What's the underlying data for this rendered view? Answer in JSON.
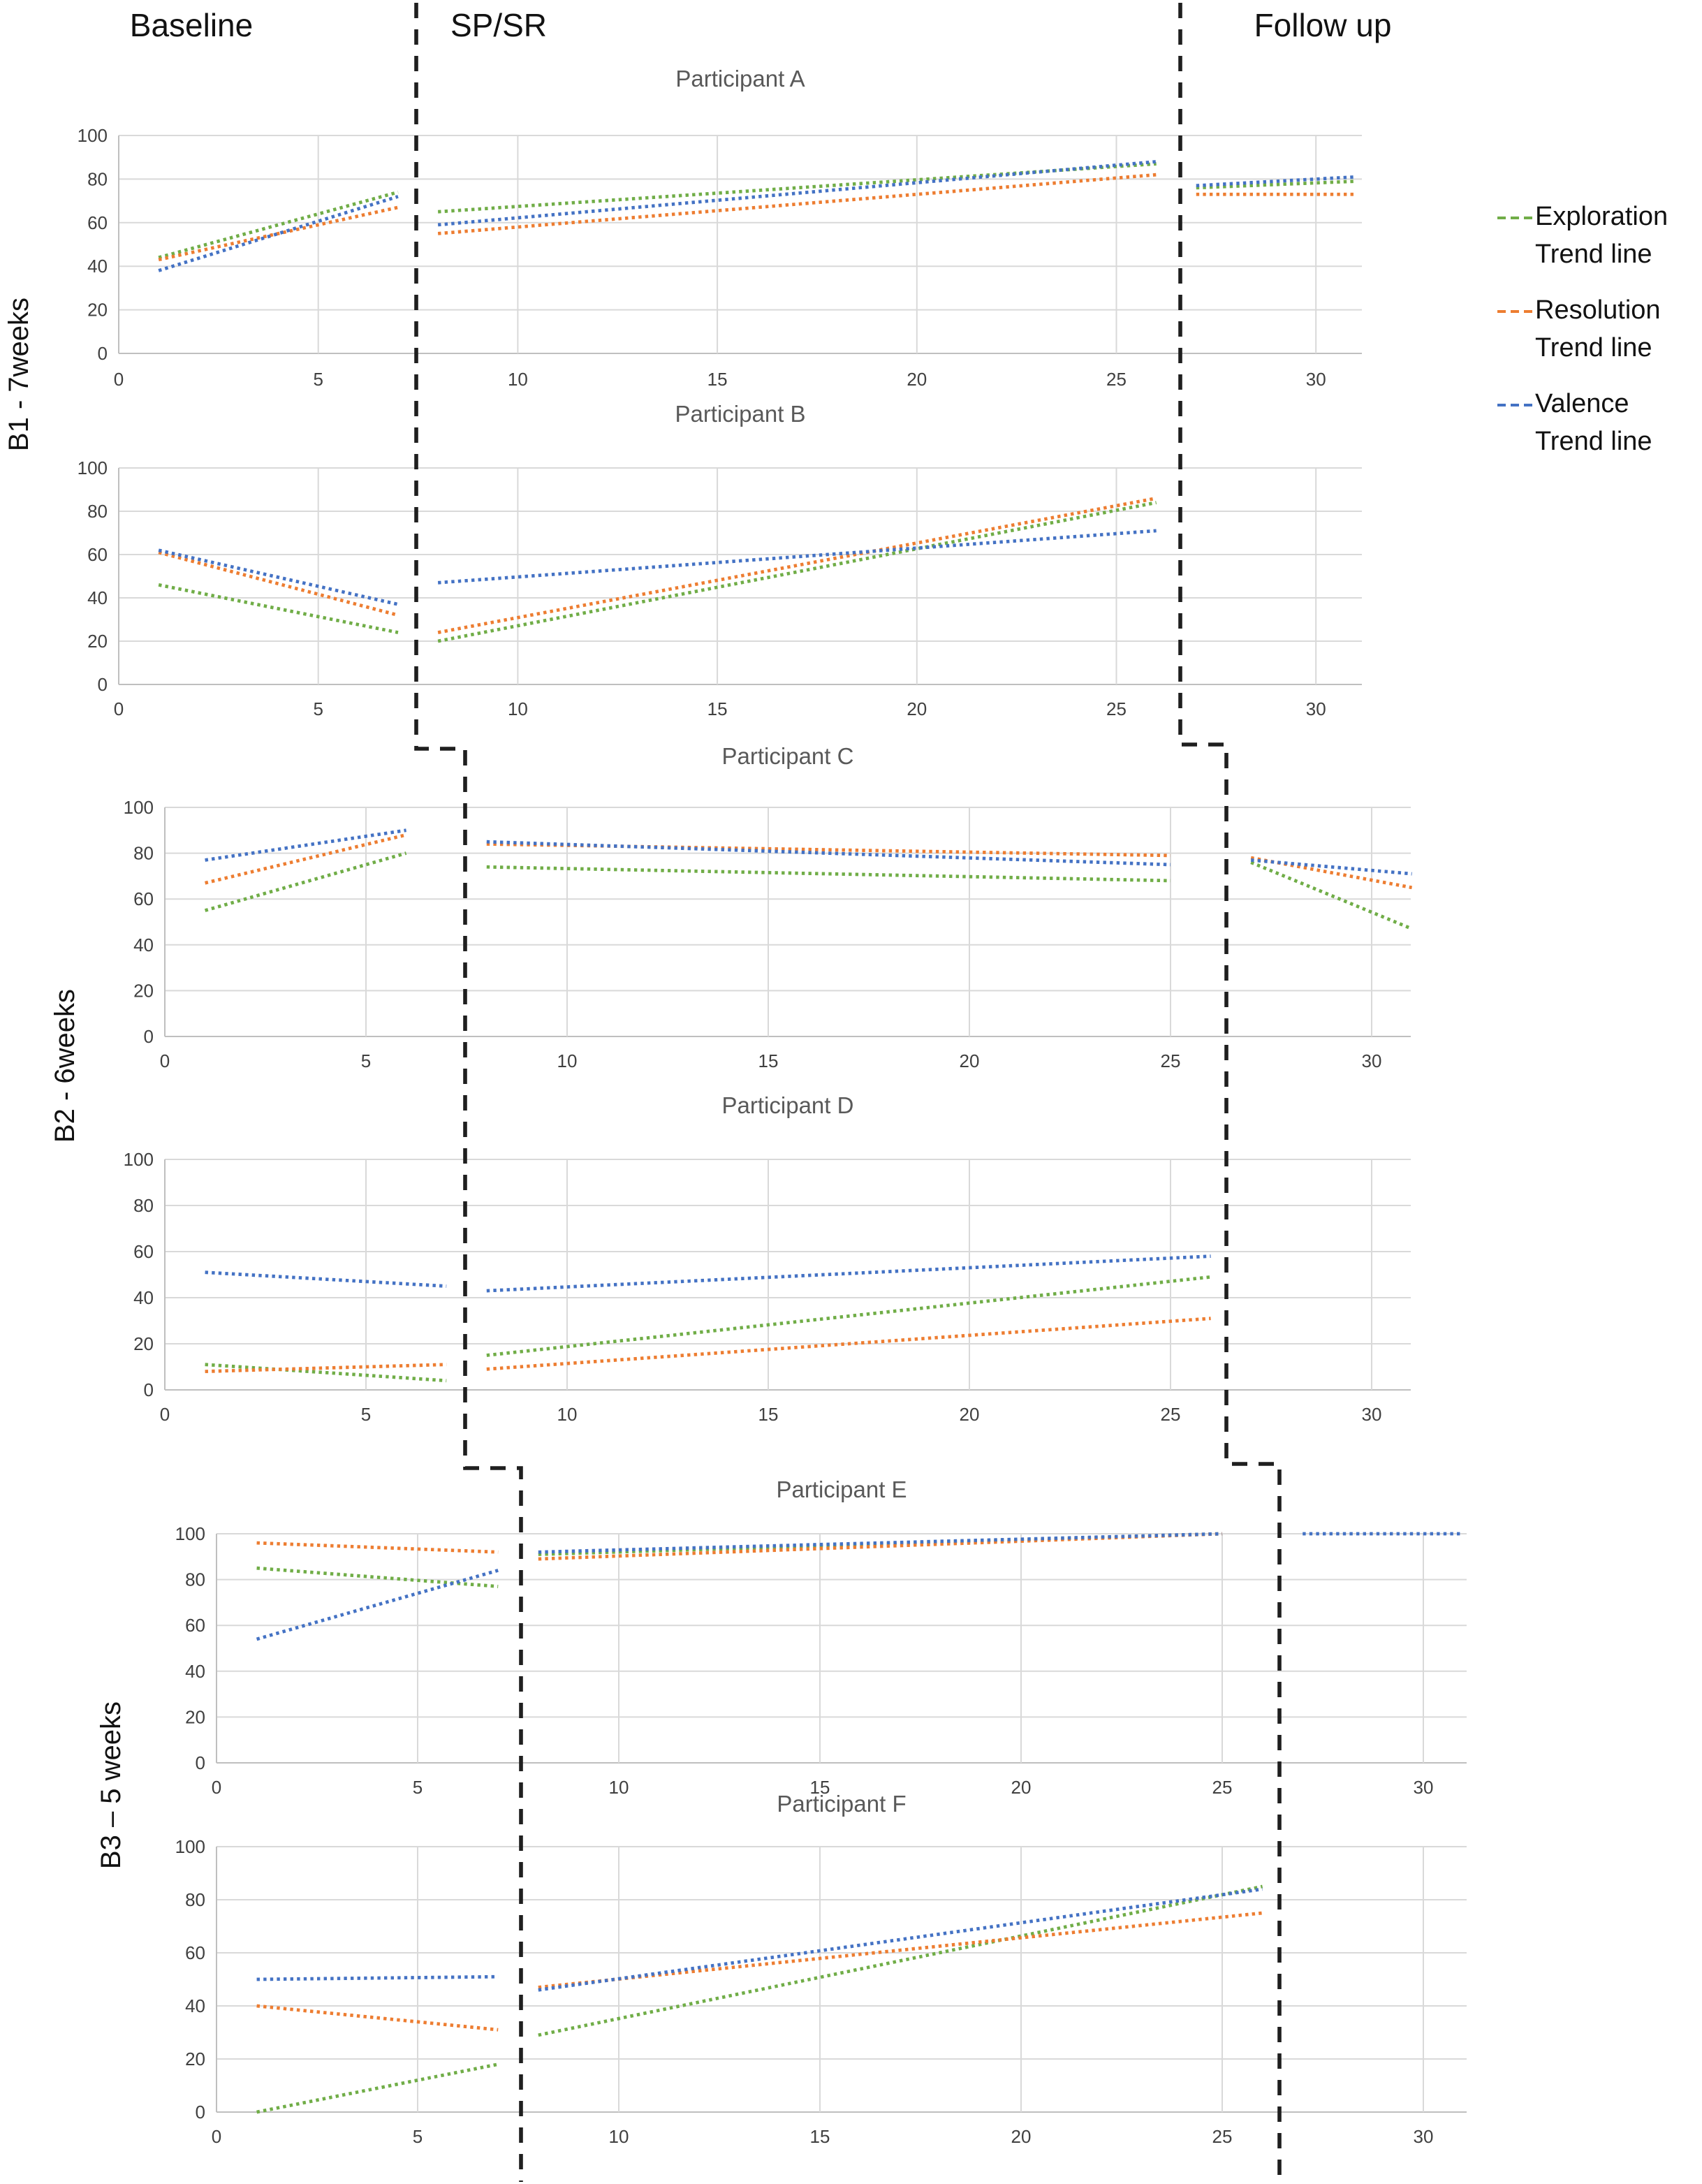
{
  "header": {
    "baseline": "Baseline",
    "spsr": "SP/SR",
    "followup": "Follow up"
  },
  "row_labels": [
    "B1 - 7weeks",
    "B2 - 6weeks",
    "B3 – 5 weeks"
  ],
  "legend": [
    {
      "name": "Exploration",
      "sub": "Trend line",
      "color": "#70AD47"
    },
    {
      "name": "Resolution",
      "sub": "Trend line",
      "color": "#ED7D31"
    },
    {
      "name": "Valence",
      "sub": "Trend line",
      "color": "#4472C4"
    }
  ],
  "chart_data": [
    {
      "type": "line",
      "title": "Participant A",
      "xlabel": "",
      "ylabel": "",
      "xlim": [
        0,
        31.2
      ],
      "ylim": [
        0,
        100
      ],
      "xticks": [
        0,
        5,
        10,
        15,
        20,
        25,
        30
      ],
      "yticks": [
        0,
        20,
        40,
        60,
        80,
        100
      ],
      "grid": true,
      "series": [
        {
          "name": "Exploration Trend line",
          "color": "#70AD47",
          "segments": [
            {
              "phase": "baseline",
              "x": [
                1,
                7
              ],
              "y": [
                44,
                74
              ]
            },
            {
              "phase": "spsr",
              "x": [
                8,
                26
              ],
              "y": [
                65,
                87
              ]
            },
            {
              "phase": "followup",
              "x": [
                27,
                31
              ],
              "y": [
                76,
                79
              ]
            }
          ]
        },
        {
          "name": "Resolution Trend line",
          "color": "#ED7D31",
          "segments": [
            {
              "phase": "baseline",
              "x": [
                1,
                7
              ],
              "y": [
                43,
                67
              ]
            },
            {
              "phase": "spsr",
              "x": [
                8,
                26
              ],
              "y": [
                55,
                82
              ]
            },
            {
              "phase": "followup",
              "x": [
                27,
                31
              ],
              "y": [
                73,
                73
              ]
            }
          ]
        },
        {
          "name": "Valence Trend line",
          "color": "#4472C4",
          "segments": [
            {
              "phase": "baseline",
              "x": [
                1,
                7
              ],
              "y": [
                38,
                72
              ]
            },
            {
              "phase": "spsr",
              "x": [
                8,
                26
              ],
              "y": [
                59,
                88
              ]
            },
            {
              "phase": "followup",
              "x": [
                27,
                31
              ],
              "y": [
                77,
                81
              ]
            }
          ]
        }
      ]
    },
    {
      "type": "line",
      "title": "Participant B",
      "xlabel": "",
      "ylabel": "",
      "xlim": [
        0,
        31.2
      ],
      "ylim": [
        0,
        100
      ],
      "xticks": [
        0,
        5,
        10,
        15,
        20,
        25,
        30
      ],
      "yticks": [
        0,
        20,
        40,
        60,
        80,
        100
      ],
      "grid": true,
      "series": [
        {
          "name": "Exploration Trend line",
          "color": "#70AD47",
          "segments": [
            {
              "phase": "baseline",
              "x": [
                1,
                7
              ],
              "y": [
                46,
                24
              ]
            },
            {
              "phase": "spsr",
              "x": [
                8,
                26
              ],
              "y": [
                20,
                84
              ]
            }
          ]
        },
        {
          "name": "Resolution Trend line",
          "color": "#ED7D31",
          "segments": [
            {
              "phase": "baseline",
              "x": [
                1,
                7
              ],
              "y": [
                61,
                32
              ]
            },
            {
              "phase": "spsr",
              "x": [
                8,
                26
              ],
              "y": [
                24,
                86
              ]
            }
          ]
        },
        {
          "name": "Valence Trend line",
          "color": "#4472C4",
          "segments": [
            {
              "phase": "baseline",
              "x": [
                1,
                7
              ],
              "y": [
                62,
                37
              ]
            },
            {
              "phase": "spsr",
              "x": [
                8,
                26
              ],
              "y": [
                47,
                71
              ]
            }
          ]
        }
      ]
    },
    {
      "type": "line",
      "title": "Participant C",
      "xlabel": "",
      "ylabel": "",
      "xlim": [
        0,
        31
      ],
      "ylim": [
        0,
        100
      ],
      "xticks": [
        0,
        5,
        10,
        15,
        20,
        25,
        30
      ],
      "yticks": [
        0,
        20,
        40,
        60,
        80,
        100
      ],
      "grid": true,
      "series": [
        {
          "name": "Exploration Trend line",
          "color": "#70AD47",
          "segments": [
            {
              "phase": "baseline",
              "x": [
                1,
                6
              ],
              "y": [
                55,
                80
              ]
            },
            {
              "phase": "spsr",
              "x": [
                8,
                25
              ],
              "y": [
                74,
                68
              ]
            },
            {
              "phase": "followup",
              "x": [
                27,
                31
              ],
              "y": [
                76,
                47
              ]
            }
          ]
        },
        {
          "name": "Resolution Trend line",
          "color": "#ED7D31",
          "segments": [
            {
              "phase": "baseline",
              "x": [
                1,
                6
              ],
              "y": [
                67,
                88
              ]
            },
            {
              "phase": "spsr",
              "x": [
                8,
                25
              ],
              "y": [
                84,
                79
              ]
            },
            {
              "phase": "followup",
              "x": [
                27,
                31
              ],
              "y": [
                78,
                65
              ]
            }
          ]
        },
        {
          "name": "Valence Trend line",
          "color": "#4472C4",
          "segments": [
            {
              "phase": "baseline",
              "x": [
                1,
                6
              ],
              "y": [
                77,
                90
              ]
            },
            {
              "phase": "spsr",
              "x": [
                8,
                25
              ],
              "y": [
                85,
                75
              ]
            },
            {
              "phase": "followup",
              "x": [
                27,
                31
              ],
              "y": [
                77,
                71
              ]
            }
          ]
        }
      ]
    },
    {
      "type": "line",
      "title": "Participant D",
      "xlabel": "",
      "ylabel": "",
      "xlim": [
        0,
        31
      ],
      "ylim": [
        0,
        100
      ],
      "xticks": [
        0,
        5,
        10,
        15,
        20,
        25,
        30
      ],
      "yticks": [
        0,
        20,
        40,
        60,
        80,
        100
      ],
      "grid": true,
      "series": [
        {
          "name": "Exploration Trend line",
          "color": "#70AD47",
          "segments": [
            {
              "phase": "baseline",
              "x": [
                1,
                7
              ],
              "y": [
                11,
                4
              ]
            },
            {
              "phase": "spsr",
              "x": [
                8,
                26
              ],
              "y": [
                15,
                49
              ]
            }
          ]
        },
        {
          "name": "Resolution Trend line",
          "color": "#ED7D31",
          "segments": [
            {
              "phase": "baseline",
              "x": [
                1,
                7
              ],
              "y": [
                8,
                11
              ]
            },
            {
              "phase": "spsr",
              "x": [
                8,
                26
              ],
              "y": [
                9,
                31
              ]
            }
          ]
        },
        {
          "name": "Valence Trend line",
          "color": "#4472C4",
          "segments": [
            {
              "phase": "baseline",
              "x": [
                1,
                7
              ],
              "y": [
                51,
                45
              ]
            },
            {
              "phase": "spsr",
              "x": [
                8,
                26
              ],
              "y": [
                43,
                58
              ]
            }
          ]
        }
      ]
    },
    {
      "type": "line",
      "title": "Participant E",
      "xlabel": "",
      "ylabel": "",
      "xlim": [
        0,
        31
      ],
      "ylim": [
        0,
        100
      ],
      "xticks": [
        0,
        5,
        10,
        15,
        20,
        25,
        30
      ],
      "yticks": [
        0,
        20,
        40,
        60,
        80,
        100
      ],
      "grid": true,
      "series": [
        {
          "name": "Exploration Trend line",
          "color": "#70AD47",
          "segments": [
            {
              "phase": "baseline",
              "x": [
                1,
                7
              ],
              "y": [
                85,
                77
              ]
            },
            {
              "phase": "spsr",
              "x": [
                8,
                25
              ],
              "y": [
                91,
                100
              ]
            }
          ]
        },
        {
          "name": "Resolution Trend line",
          "color": "#ED7D31",
          "segments": [
            {
              "phase": "baseline",
              "x": [
                1,
                7
              ],
              "y": [
                96,
                92
              ]
            },
            {
              "phase": "spsr",
              "x": [
                8,
                25
              ],
              "y": [
                89,
                100
              ]
            }
          ]
        },
        {
          "name": "Valence Trend line",
          "color": "#4472C4",
          "segments": [
            {
              "phase": "baseline",
              "x": [
                1,
                7
              ],
              "y": [
                54,
                84
              ]
            },
            {
              "phase": "spsr",
              "x": [
                8,
                25
              ],
              "y": [
                92,
                100
              ]
            },
            {
              "phase": "followup",
              "x": [
                27,
                31
              ],
              "y": [
                100,
                100
              ]
            }
          ]
        }
      ]
    },
    {
      "type": "line",
      "title": "Participant F",
      "xlabel": "",
      "ylabel": "",
      "xlim": [
        0,
        31
      ],
      "ylim": [
        0,
        100
      ],
      "xticks": [
        0,
        5,
        10,
        15,
        20,
        25,
        30
      ],
      "yticks": [
        0,
        20,
        40,
        60,
        80,
        100
      ],
      "grid": true,
      "series": [
        {
          "name": "Exploration Trend line",
          "color": "#70AD47",
          "segments": [
            {
              "phase": "baseline",
              "x": [
                1,
                7
              ],
              "y": [
                0,
                18
              ]
            },
            {
              "phase": "spsr",
              "x": [
                8,
                26
              ],
              "y": [
                29,
                85
              ]
            }
          ]
        },
        {
          "name": "Resolution Trend line",
          "color": "#ED7D31",
          "segments": [
            {
              "phase": "baseline",
              "x": [
                1,
                7
              ],
              "y": [
                40,
                31
              ]
            },
            {
              "phase": "spsr",
              "x": [
                8,
                26
              ],
              "y": [
                47,
                75
              ]
            }
          ]
        },
        {
          "name": "Valence Trend line",
          "color": "#4472C4",
          "segments": [
            {
              "phase": "baseline",
              "x": [
                1,
                7
              ],
              "y": [
                50,
                51
              ]
            },
            {
              "phase": "spsr",
              "x": [
                8,
                26
              ],
              "y": [
                46,
                84
              ]
            }
          ]
        }
      ]
    }
  ]
}
